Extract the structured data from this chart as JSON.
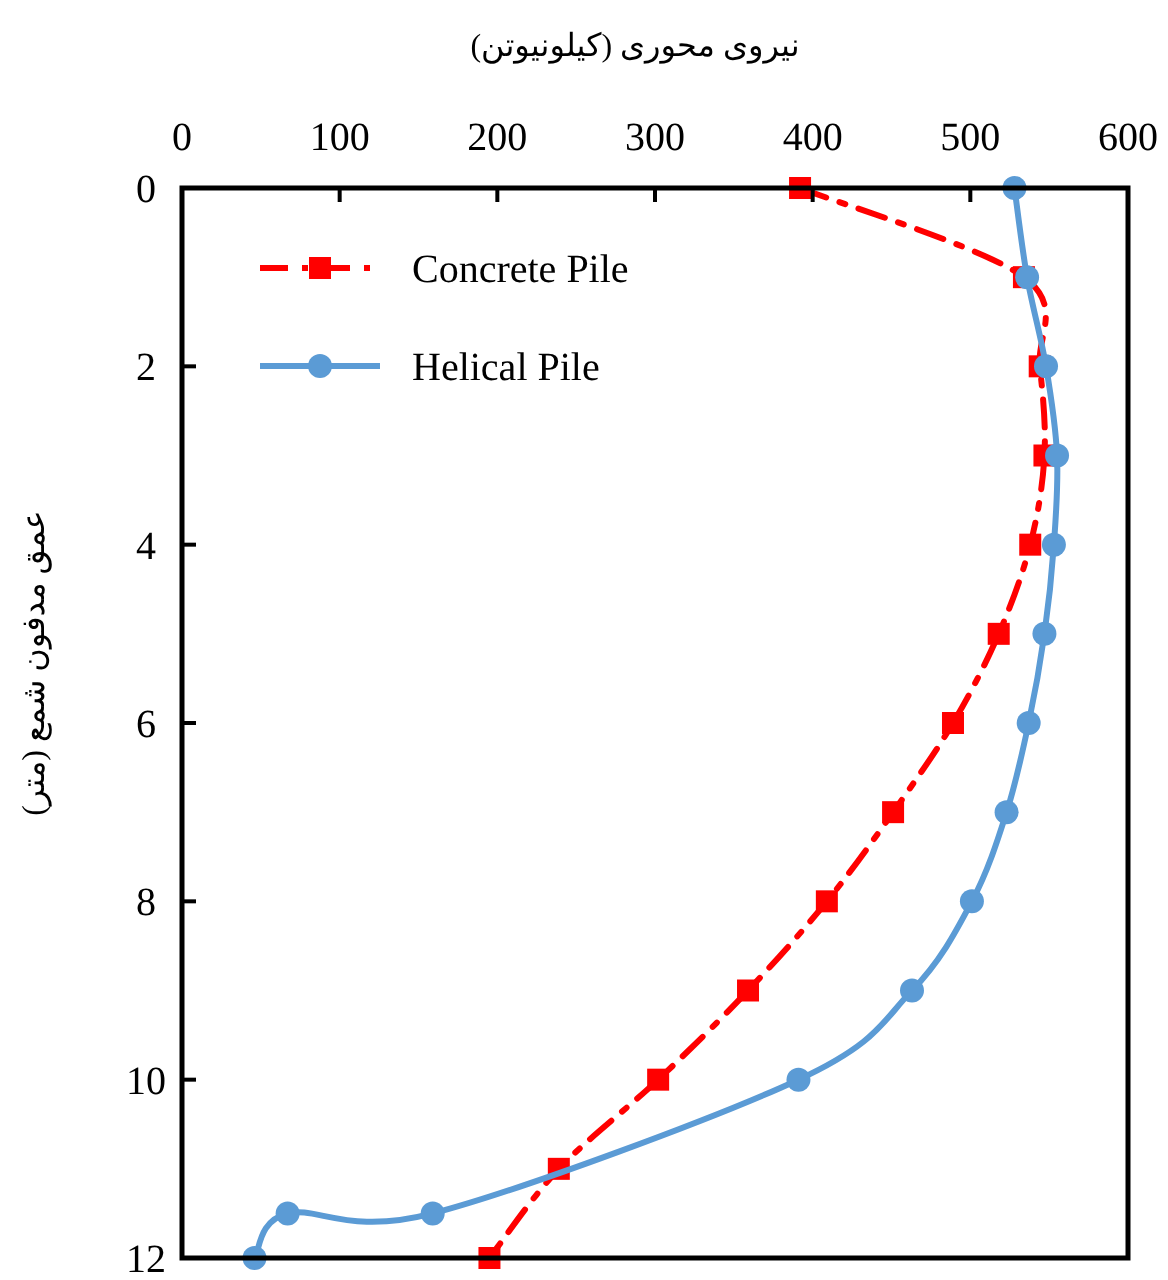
{
  "chart_data": {
    "type": "line",
    "xlabel": "نیروی محوری (کیلونیوتن)",
    "ylabel": "عمق مدفون شمع (متر)",
    "xlim": [
      0,
      600
    ],
    "xticks": [
      0,
      100,
      200,
      300,
      400,
      500,
      600
    ],
    "ylim": [
      12,
      0
    ],
    "yticks": [
      0,
      2,
      4,
      6,
      8,
      10,
      12
    ],
    "grid": false,
    "legend": "top left",
    "series": [
      {
        "name": "Concrete Pile",
        "color": "#ff0000",
        "marker": "square",
        "line_style": "dashed",
        "x": [
          392,
          534,
          544,
          547,
          538,
          518,
          489,
          451,
          409,
          359,
          302,
          239,
          195
        ],
        "values": [
          0,
          1,
          2,
          3,
          4,
          5,
          6,
          7,
          8,
          9,
          10,
          11,
          12
        ]
      },
      {
        "name": "Helical Pile",
        "color": "#5b9bd5",
        "marker": "circle",
        "line_style": "solid",
        "x": [
          528,
          536,
          548,
          555,
          553,
          547,
          537,
          523,
          501,
          463,
          391,
          159,
          67,
          46
        ],
        "values": [
          0,
          1,
          2,
          3,
          4,
          5,
          6,
          7,
          8,
          9,
          10,
          11.5,
          11.5,
          12
        ]
      }
    ]
  }
}
